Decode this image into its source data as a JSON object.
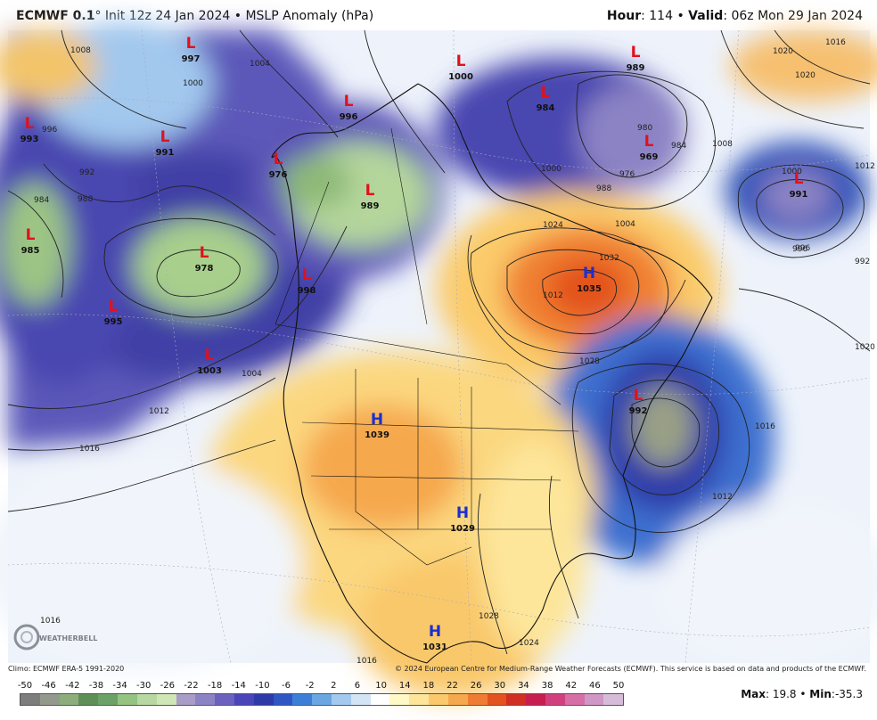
{
  "header": {
    "model": "ECMWF 0.1",
    "degree": "°",
    "init": "Init 12z 24 Jan 2024",
    "separator": "•",
    "product": "MSLP Anomaly (hPa)",
    "hour_label": "Hour",
    "hour_value": ": 114",
    "valid_label": "Valid",
    "valid_value": ": 06z Mon 29 Jan 2024"
  },
  "footer": {
    "climo": "Climo: ECMWF ERA-5 1991-2020",
    "copyright": "© 2024 European Centre for Medium-Range Weather Forecasts (ECMWF). This service is based on data and products of the ECMWF.",
    "max_label": "Max",
    "max_value": ": 19.8",
    "min_label": "Min",
    "min_value": ":-35.3",
    "dot": "•"
  },
  "logo": {
    "text": "WEATHERBELL"
  },
  "colorbar": {
    "ticks": [
      "-50",
      "-46",
      "-42",
      "-38",
      "-34",
      "-30",
      "-26",
      "-22",
      "-18",
      "-14",
      "-10",
      "-6",
      "-2",
      "2",
      "6",
      "10",
      "14",
      "18",
      "22",
      "26",
      "30",
      "34",
      "38",
      "42",
      "46",
      "50"
    ],
    "colors": [
      "#7d7d7d",
      "#949a8b",
      "#8dae7c",
      "#5f8e57",
      "#6ca267",
      "#94c382",
      "#b7d8a1",
      "#cfe6b6",
      "#a99cc7",
      "#8c83c5",
      "#6b61bf",
      "#4a45b9",
      "#2d3aa8",
      "#2f56c4",
      "#3c7fd7",
      "#6aa6e2",
      "#a3c9ef",
      "#d3e4f7",
      "#ffffff",
      "#fff8c7",
      "#fde59a",
      "#fbc96c",
      "#f6a84d",
      "#f07c34",
      "#e3521f",
      "#d02f22",
      "#c81d4f",
      "#d0407f",
      "#d66fa7",
      "#cf96c6",
      "#d7bcd9"
    ]
  },
  "pressure_centers": [
    {
      "type": "L",
      "value": "997"
    },
    {
      "type": "L",
      "value": "993"
    },
    {
      "type": "L",
      "value": "991"
    },
    {
      "type": "L",
      "value": "996"
    },
    {
      "type": "L",
      "value": "976"
    },
    {
      "type": "L",
      "value": "989"
    },
    {
      "type": "L",
      "value": "985"
    },
    {
      "type": "L",
      "value": "978"
    },
    {
      "type": "L",
      "value": "998"
    },
    {
      "type": "L",
      "value": "995"
    },
    {
      "type": "L",
      "value": "1003"
    },
    {
      "type": "L",
      "value": "1000"
    },
    {
      "type": "L",
      "value": "989"
    },
    {
      "type": "L",
      "value": "984"
    },
    {
      "type": "L",
      "value": "969"
    },
    {
      "type": "L",
      "value": "991"
    },
    {
      "type": "H",
      "value": "1035"
    },
    {
      "type": "L",
      "value": "992"
    },
    {
      "type": "H",
      "value": "1039"
    },
    {
      "type": "H",
      "value": "1029"
    },
    {
      "type": "H",
      "value": "1031"
    }
  ],
  "isobar_labels": [
    "1004",
    "1008",
    "1000",
    "996",
    "992",
    "988",
    "984",
    "1012",
    "1016",
    "1020",
    "1024",
    "1028",
    "1032",
    "1016",
    "1012",
    "1008",
    "1004",
    "1000",
    "996",
    "992",
    "988",
    "980",
    "976",
    "1016",
    "1020",
    "1016",
    "1024",
    "1028",
    "1012",
    "1016",
    "1020",
    "1004",
    "1000",
    "984",
    "988",
    "996",
    "1012"
  ]
}
